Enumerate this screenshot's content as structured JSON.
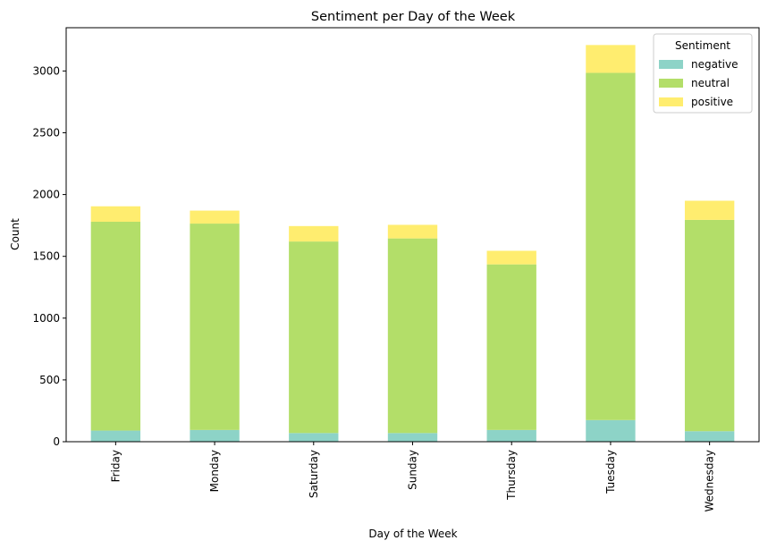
{
  "chart_data": {
    "type": "bar",
    "stacked": true,
    "title": "Sentiment per Day of the Week",
    "xlabel": "Day of the Week",
    "ylabel": "Count",
    "ylim": [
      0,
      3350
    ],
    "yticks": [
      "0",
      "500",
      "1000",
      "1500",
      "2000",
      "2500",
      "3000"
    ],
    "categories": [
      "Friday",
      "Monday",
      "Saturday",
      "Sunday",
      "Thursday",
      "Tuesday",
      "Wednesday"
    ],
    "legend": {
      "title": "Sentiment",
      "placement": "top-right"
    },
    "grid": false,
    "series": [
      {
        "name": "negative",
        "color": "#8dd3c7",
        "values": [
          90,
          95,
          70,
          70,
          95,
          175,
          85
        ]
      },
      {
        "name": "neutral",
        "color": "#b3de69",
        "values": [
          1690,
          1670,
          1550,
          1575,
          1340,
          2810,
          1710
        ]
      },
      {
        "name": "positive",
        "color": "#ffed6f",
        "values": [
          125,
          105,
          125,
          110,
          110,
          225,
          155
        ]
      }
    ]
  }
}
